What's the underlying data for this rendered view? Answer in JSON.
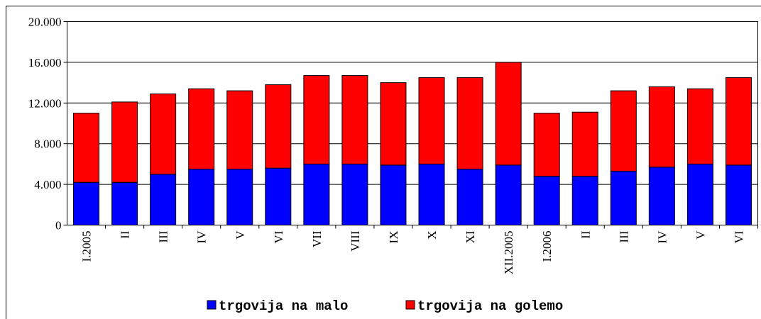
{
  "chart_data": {
    "type": "stacked_bar",
    "categories": [
      "I.2005",
      "II",
      "III",
      "IV",
      "V",
      "VI",
      "VII",
      "VIII",
      "IX",
      "X",
      "XI",
      "XII.2005",
      "I.2006",
      "II",
      "III",
      "IV",
      "V",
      "VI"
    ],
    "series": [
      {
        "name": "trgovija na malo",
        "color": "#0000ff",
        "values": [
          4200,
          4200,
          5000,
          5500,
          5500,
          5600,
          6000,
          6000,
          5900,
          6000,
          5500,
          5900,
          4800,
          4800,
          5300,
          5700,
          6000,
          5900
        ]
      },
      {
        "name": "trgovija na golemo",
        "color": "#ff0000",
        "values": [
          6800,
          7900,
          7900,
          7900,
          7700,
          8200,
          8700,
          8700,
          8100,
          8500,
          9000,
          10100,
          6200,
          6300,
          7900,
          7900,
          7400,
          8600
        ]
      }
    ],
    "ylim": [
      0,
      20000
    ],
    "yticks": [
      0,
      {
        "value": 4000,
        "label": "4.000"
      },
      {
        "value": 8000,
        "label": "8.000"
      },
      {
        "value": 12000,
        "label": "12.000"
      },
      {
        "value": 16000,
        "label": "16.000"
      },
      {
        "value": 20000,
        "label": "20.000"
      }
    ],
    "grid": true,
    "legend": "bottom"
  }
}
